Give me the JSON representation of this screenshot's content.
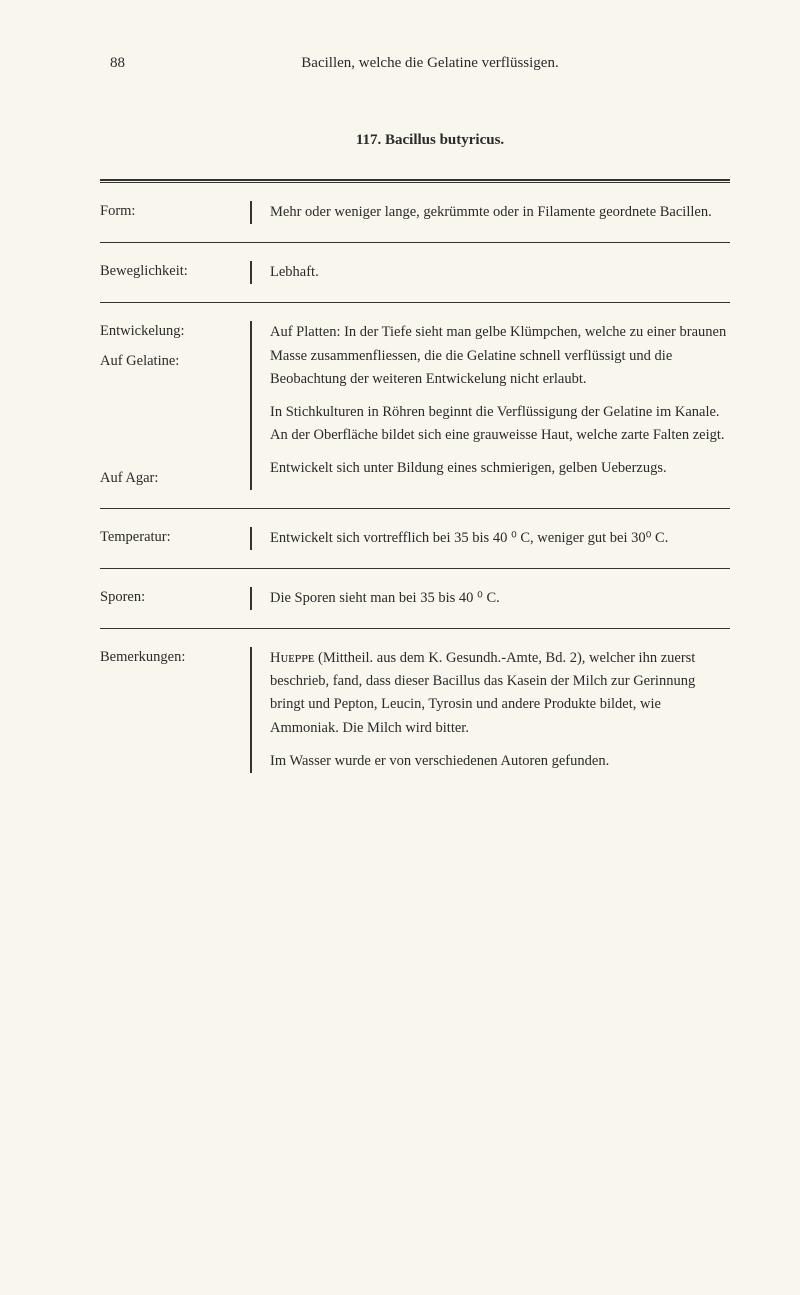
{
  "page_number": "88",
  "header_title": "Bacillen, welche die Gelatine verflüssigen.",
  "section_title": "117. Bacillus butyricus.",
  "rows": [
    {
      "label": "Form:",
      "content": "Mehr oder weniger lange, gekrümmte oder in Filamente geordnete Bacillen."
    },
    {
      "label": "Beweglichkeit:",
      "content": "Lebhaft."
    },
    {
      "label": "Entwickelung:",
      "sublabel": "Auf Gelatine:",
      "content_p1": "Auf Platten: In der Tiefe sieht man gelbe Klümpchen, welche zu einer braunen Masse zusammenfliessen, die die Gelatine schnell verflüssigt und die Beobachtung der weiteren Entwickelung nicht erlaubt.",
      "content_p2": "In Stichkulturen in Röhren beginnt die Verflüssigung der Gelatine im Kanale. An der Oberfläche bildet sich eine grauweisse Haut, welche zarte Falten zeigt.",
      "label2": "Auf Agar:",
      "content_p3": "Entwickelt sich unter Bildung eines schmierigen, gelben Ueberzugs."
    },
    {
      "label": "Temperatur:",
      "content": "Entwickelt sich vortrefflich bei 35 bis 40 ⁰ C, weniger gut bei 30⁰ C."
    },
    {
      "label": "Sporen:",
      "content": "Die Sporen sieht man bei 35 bis 40 ⁰ C."
    },
    {
      "label": "Bemerkungen:",
      "content_p1": "Hᴜᴇᴘᴘᴇ (Mittheil. aus dem K. Gesundh.-Amte, Bd. 2), welcher ihn zuerst beschrieb, fand, dass dieser Bacillus das Kasein der Milch zur Gerinnung bringt und Pepton, Leucin, Tyrosin und andere Produkte bildet, wie Ammoniak. Die Milch wird bitter.",
      "content_p2": "Im Wasser wurde er von verschiedenen Autoren gefunden."
    }
  ]
}
